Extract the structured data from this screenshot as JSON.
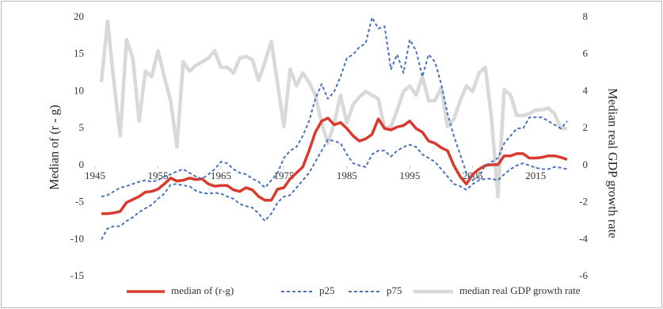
{
  "chart_data": {
    "type": "line",
    "x": [
      1946,
      1947,
      1948,
      1949,
      1950,
      1951,
      1952,
      1953,
      1954,
      1955,
      1956,
      1957,
      1958,
      1959,
      1960,
      1961,
      1962,
      1963,
      1964,
      1965,
      1966,
      1967,
      1968,
      1969,
      1970,
      1971,
      1972,
      1973,
      1974,
      1975,
      1976,
      1977,
      1978,
      1979,
      1980,
      1981,
      1982,
      1983,
      1984,
      1985,
      1986,
      1987,
      1988,
      1989,
      1990,
      1991,
      1992,
      1993,
      1994,
      1995,
      1996,
      1997,
      1998,
      1999,
      2000,
      2001,
      2002,
      2003,
      2004,
      2005,
      2006,
      2007,
      2008,
      2009,
      2010,
      2011,
      2012,
      2013,
      2014,
      2015,
      2016,
      2017,
      2018,
      2019,
      2020
    ],
    "xlim": [
      1945,
      2020
    ],
    "xticks": [
      1945,
      1955,
      1965,
      1975,
      1985,
      1995,
      2005,
      2015
    ],
    "ylim": [
      -15,
      20
    ],
    "yticks": [
      -15,
      -10,
      -5,
      0,
      5,
      10,
      15,
      20
    ],
    "y2lim": [
      -6,
      8
    ],
    "y2ticks": [
      -6,
      -4,
      -2,
      0,
      2,
      4,
      6,
      8
    ],
    "ylabel": "Median of (r - g)",
    "y2label": "Median real GDP growth rate",
    "grid": false,
    "legend": "bottom",
    "series": [
      {
        "name": "median of (r-g)",
        "color": "#d93a2f",
        "width": 3.5,
        "dashed": false,
        "values": [
          -6.5,
          -6.5,
          -6.4,
          -6.2,
          -5,
          -4.6,
          -4.2,
          -3.6,
          -3.5,
          -3.2,
          -2.5,
          -1.7,
          -2.1,
          -2,
          -1.7,
          -1.9,
          -1.8,
          -2.5,
          -2.8,
          -2.7,
          -2.7,
          -3.3,
          -3.5,
          -3,
          -3.3,
          -4.2,
          -4.7,
          -4.7,
          -3.2,
          -3,
          -1.8,
          -1,
          -0.2,
          2,
          4.5,
          6,
          6.4,
          5.5,
          5.8,
          5,
          4,
          3.3,
          3.6,
          4.2,
          6.3,
          5,
          4.8,
          5.2,
          5.4,
          6,
          5,
          4.5,
          3.3,
          3,
          2.4,
          2,
          0,
          -1.5,
          -2.5,
          -1.2,
          -0.5,
          0,
          0.1,
          0.1,
          1.3,
          1.3,
          1.6,
          1.6,
          1,
          1,
          1.1,
          1.3,
          1.3,
          1.1,
          0.8
        ]
      },
      {
        "name": "p25",
        "color": "#4a72b8",
        "width": 2,
        "dashed": true,
        "values": [
          -10,
          -8.5,
          -8.2,
          -8.2,
          -7.5,
          -7,
          -6.3,
          -5.8,
          -5.3,
          -4.5,
          -3.8,
          -2.6,
          -2.5,
          -2.7,
          -2.8,
          -3.4,
          -3.7,
          -3.8,
          -3.7,
          -3.8,
          -4.2,
          -4.5,
          -5.2,
          -5.5,
          -5.7,
          -6.5,
          -7.5,
          -6.5,
          -5,
          -4.2,
          -4,
          -3,
          -2,
          -1,
          0.5,
          2,
          3.5,
          3.3,
          3,
          1.5,
          0.3,
          0,
          -0.2,
          1.5,
          2,
          2,
          1.2,
          2,
          2.5,
          2.8,
          2.5,
          1.5,
          1,
          0.5,
          -0.5,
          -1.5,
          -2.5,
          -2.8,
          -3.3,
          -2.5,
          -2,
          -1.8,
          -1.8,
          -2,
          -1.2,
          -0.5,
          0,
          0.3,
          0,
          -0.3,
          -0.5,
          -0.5,
          -0.2,
          -0.3,
          -0.5
        ]
      },
      {
        "name": "p75",
        "color": "#4a72b8",
        "width": 2,
        "dashed": true,
        "values": [
          -4.2,
          -4,
          -3.5,
          -3,
          -2.8,
          -2.5,
          -2.2,
          -2,
          -2.2,
          -2,
          -1.5,
          -1.2,
          -0.8,
          -0.5,
          -1,
          -1.5,
          -1.8,
          -1.2,
          -0.5,
          0.5,
          0.3,
          -0.5,
          -1,
          -1.2,
          -1.8,
          -2.2,
          -3,
          -2,
          -1,
          1,
          2,
          2.5,
          4,
          6,
          9,
          11,
          9,
          10,
          12,
          14.5,
          15,
          16,
          16.5,
          20,
          18.5,
          18.8,
          13,
          15,
          12.5,
          17,
          15.5,
          12,
          15,
          14,
          11,
          7,
          4,
          1.5,
          -1,
          -2,
          -1.5,
          0,
          0.5,
          1,
          3,
          4,
          5,
          5,
          6.5,
          6.5,
          6.5,
          6,
          5.5,
          5,
          6
        ]
      },
      {
        "name": "median real GDP growth rate",
        "color": "#d9d9d9",
        "width": 4.5,
        "dashed": false,
        "axis": "y2",
        "values": [
          4.5,
          7.8,
          4.5,
          1.6,
          6.8,
          5.8,
          2.4,
          5.1,
          4.8,
          6.2,
          4.8,
          3.5,
          1,
          5.6,
          5.1,
          5.4,
          5.6,
          5.8,
          6.2,
          5.3,
          5.3,
          5,
          5.8,
          5.9,
          5.7,
          4.6,
          5.6,
          6.7,
          4.4,
          2.1,
          5.2,
          4.3,
          5,
          4.5,
          3.8,
          2.3,
          1.2,
          2.3,
          3.8,
          2.3,
          3.3,
          3.7,
          4,
          3.8,
          3.6,
          2,
          2.1,
          3,
          4,
          4.3,
          3.8,
          4.8,
          3.5,
          3.5,
          4.2,
          2.1,
          2.5,
          3.5,
          4.3,
          4,
          5,
          5.3,
          2.5,
          -1.7,
          4.1,
          3.8,
          2.7,
          2.7,
          2.8,
          3,
          3,
          3.1,
          2.8,
          2,
          2
        ]
      }
    ]
  }
}
